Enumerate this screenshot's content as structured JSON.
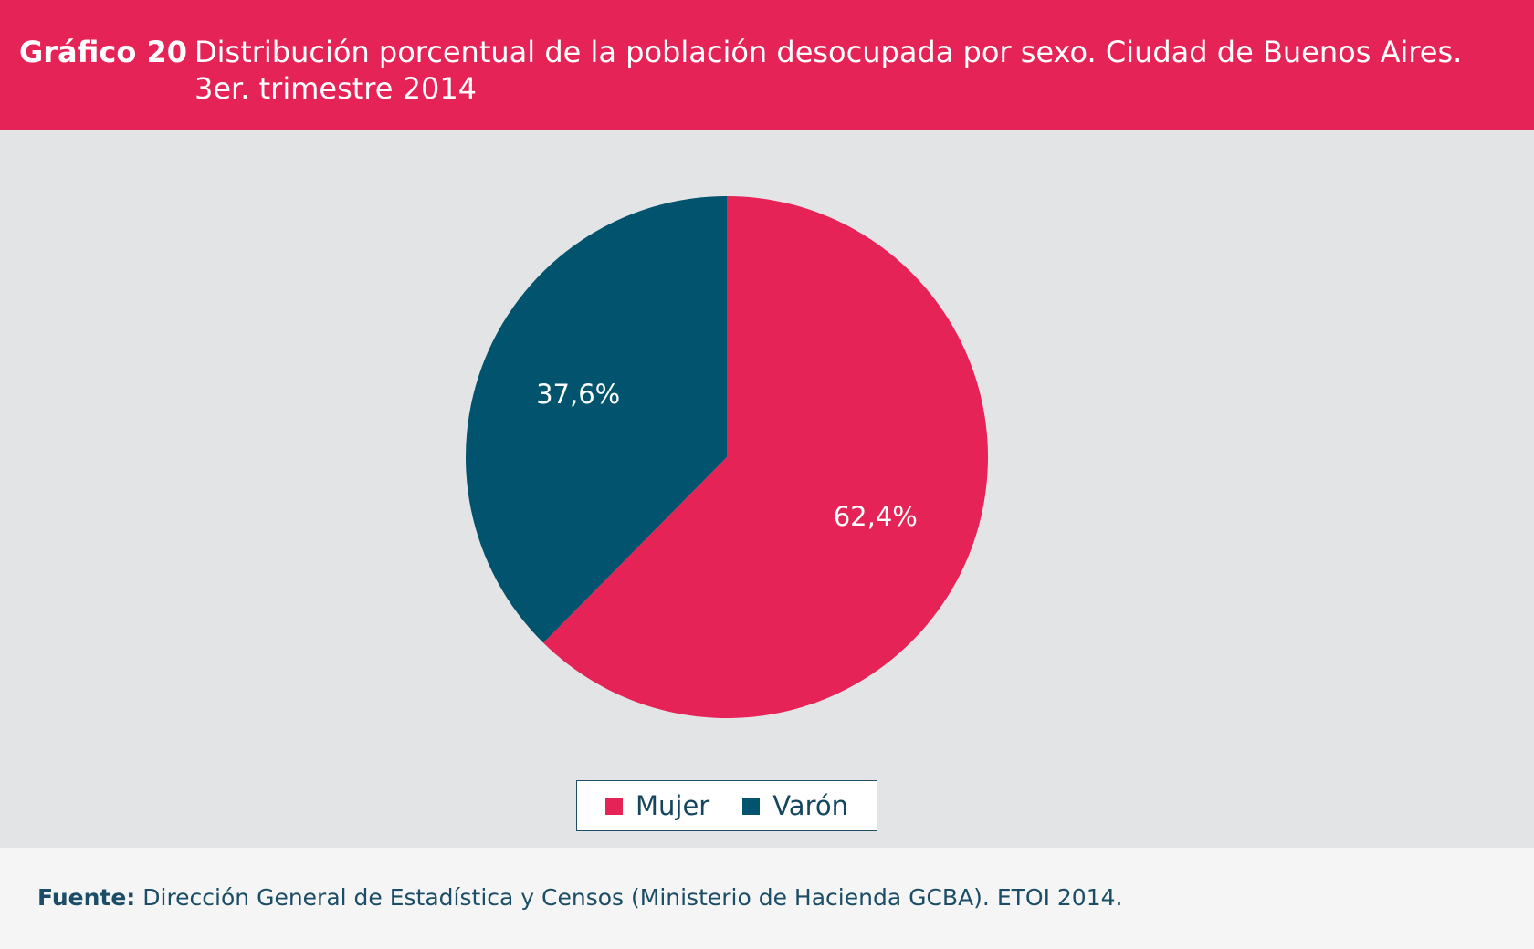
{
  "header": {
    "label": "Gráfico 20",
    "title_line1": "Distribución porcentual de la población desocupada por sexo. Ciudad de Buenos Aires.",
    "title_line2": "3er. trimestre 2014"
  },
  "colors": {
    "header_bg": "#e62356",
    "mujer": "#e62356",
    "varon": "#02546e",
    "chart_bg": "#e3e4e6"
  },
  "chart_data": {
    "type": "pie",
    "categories": [
      "Mujer",
      "Varón"
    ],
    "values": [
      62.4,
      37.6
    ],
    "labels": [
      "62,4%",
      "37,6%"
    ],
    "colors": [
      "#e62356",
      "#02546e"
    ],
    "start_angle_deg": 0,
    "direction": "clockwise",
    "legend_position": "bottom"
  },
  "legend": {
    "items": [
      {
        "label": "Mujer",
        "color": "#e62356"
      },
      {
        "label": "Varón",
        "color": "#02546e"
      }
    ]
  },
  "footer": {
    "source_label": "Fuente:",
    "source_text": " Dirección General de Estadística y Censos (Ministerio de Hacienda GCBA). ETOI 2014."
  }
}
